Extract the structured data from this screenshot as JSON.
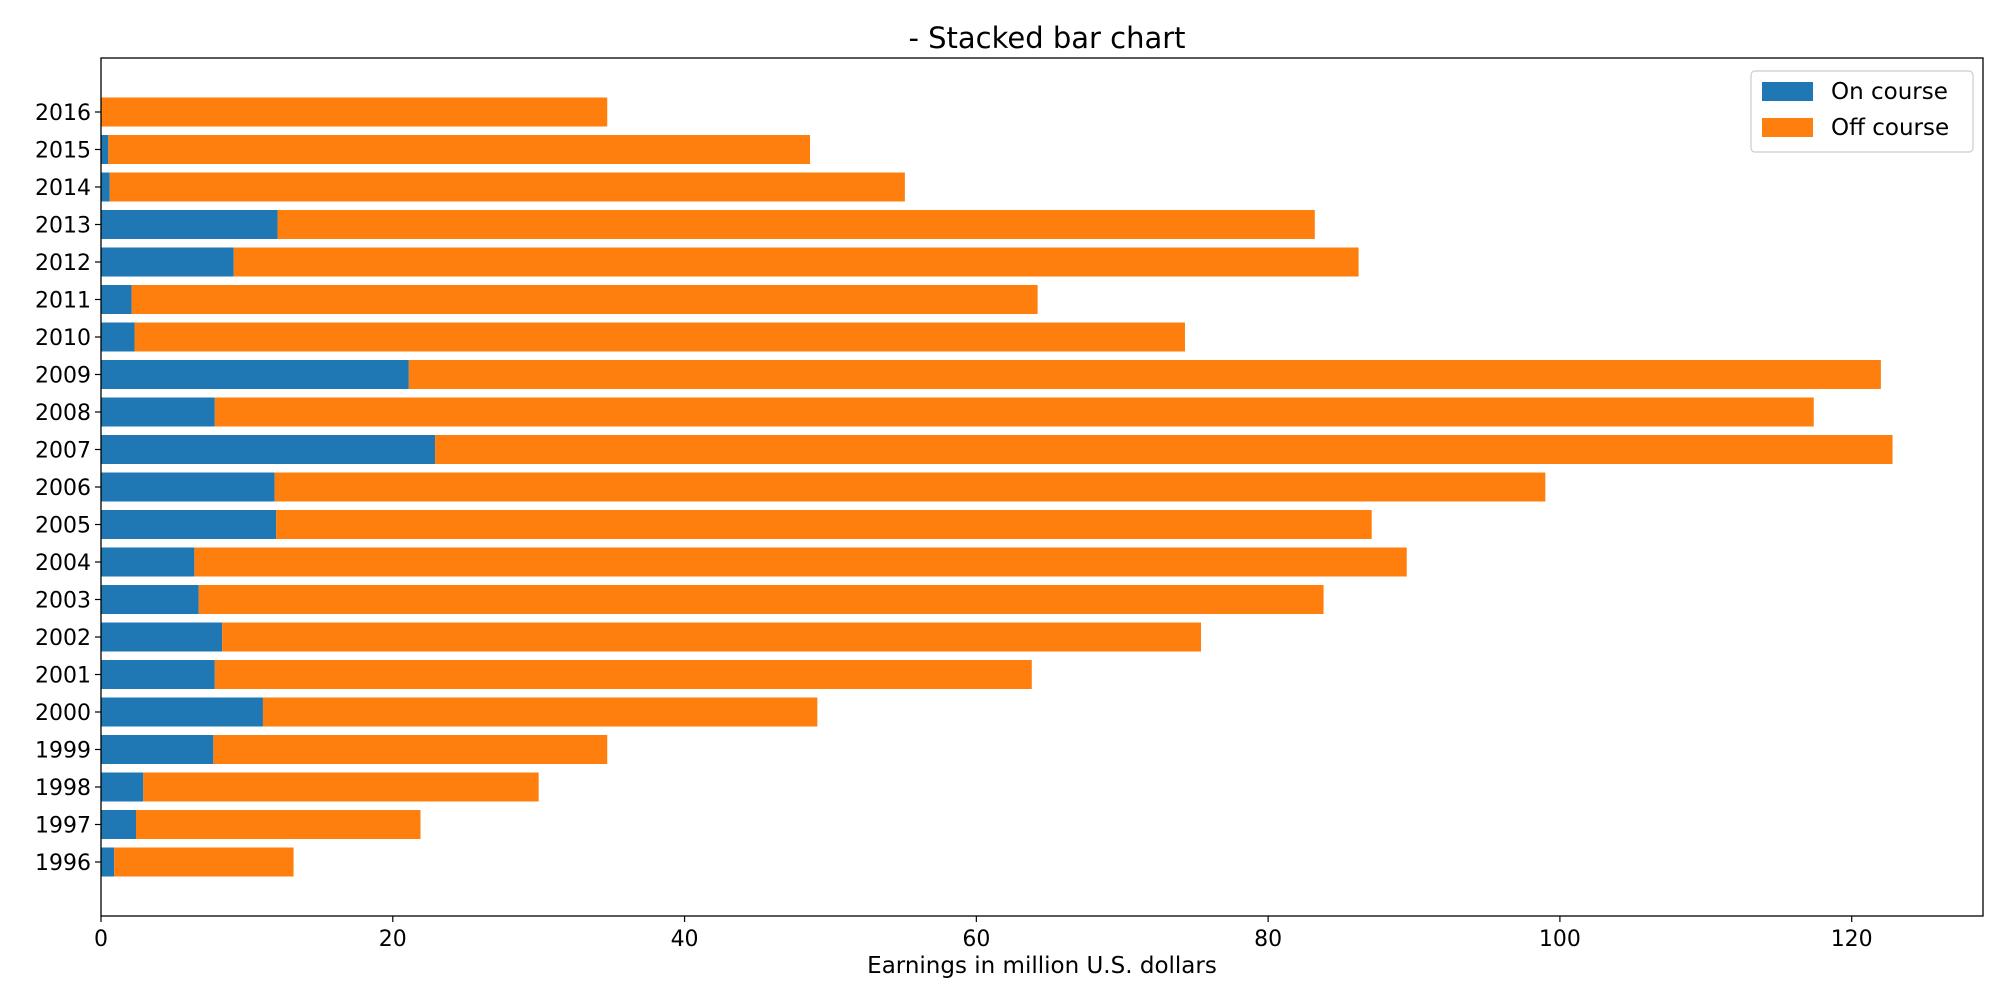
{
  "chart_data": {
    "type": "bar",
    "orientation": "horizontal",
    "stacked": true,
    "title": "- Stacked bar chart",
    "xlabel": "Earnings in million U.S. dollars",
    "ylabel": "",
    "xlim": [
      0,
      129
    ],
    "xticks": [
      "0",
      "20",
      "40",
      "60",
      "80",
      "100",
      "120"
    ],
    "categories": [
      "1996",
      "1997",
      "1998",
      "1999",
      "2000",
      "2001",
      "2002",
      "2003",
      "2004",
      "2005",
      "2006",
      "2007",
      "2008",
      "2009",
      "2010",
      "2011",
      "2012",
      "2013",
      "2014",
      "2015",
      "2016"
    ],
    "series": [
      {
        "name": "On course",
        "color": "#1f77b4",
        "values": [
          0.9,
          2.4,
          2.9,
          7.7,
          11.1,
          7.8,
          8.3,
          6.7,
          6.4,
          12.0,
          11.9,
          22.9,
          7.8,
          21.1,
          2.3,
          2.1,
          9.1,
          12.1,
          0.6,
          0.5,
          0.0
        ]
      },
      {
        "name": "Off course",
        "color": "#ff7f0e",
        "values": [
          12.3,
          19.5,
          27.1,
          27.0,
          38.0,
          56.0,
          67.1,
          77.1,
          83.1,
          75.1,
          87.1,
          99.9,
          109.6,
          100.9,
          72.0,
          62.1,
          77.1,
          71.1,
          54.5,
          48.1,
          34.7
        ]
      }
    ],
    "grid": false,
    "legend_position": "top-right"
  }
}
